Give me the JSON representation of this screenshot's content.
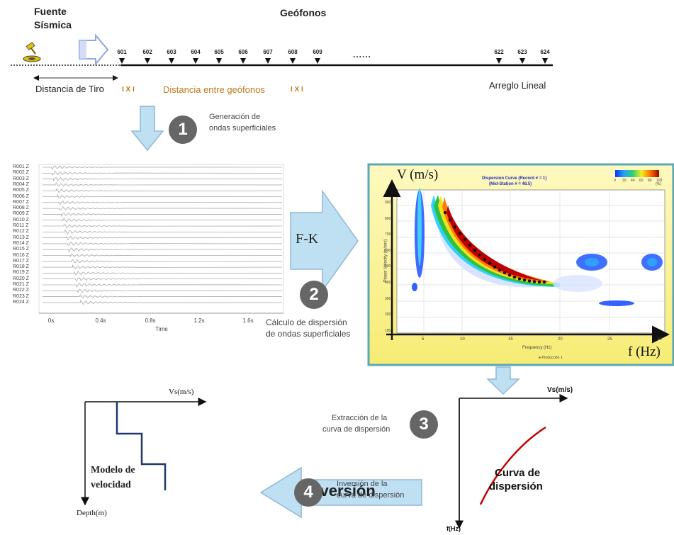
{
  "top": {
    "source_label_1": "Fuente",
    "source_label_2": "Sísmica",
    "geophones_title": "Geófonos",
    "geophones": [
      "601",
      "602",
      "603",
      "604",
      "605",
      "606",
      "607",
      "608",
      "609",
      "622",
      "623",
      "624"
    ],
    "ellipsis": "......",
    "shot_distance": "Distancia de Tiro",
    "geophone_spacing": "Distancia entre geófonos",
    "linear_array": "Arreglo Lineal",
    "spacing_marks": "I X I"
  },
  "steps": [
    {
      "number": "1",
      "line1": "Generación de",
      "line2": "ondas superficiales"
    },
    {
      "number": "2",
      "line1": "Cálculo de dispersión",
      "line2": "de ondas superficiales"
    },
    {
      "number": "3",
      "line1": "Extracción de la",
      "line2": "curva de dispersión"
    },
    {
      "number": "4",
      "line1": "Inversión  de la",
      "line2": "curva de dispersión"
    }
  ],
  "seismogram": {
    "traces": [
      "R001 Z",
      "R002 Z",
      "R003 Z",
      "R004 Z",
      "R005 Z",
      "R006 Z",
      "R007 Z",
      "R008 Z",
      "R009 Z",
      "R010 Z",
      "R011 Z",
      "R012 Z",
      "R013 Z",
      "R014 Z",
      "R015 Z",
      "R016 Z",
      "R017 Z",
      "R018 Z",
      "R019 Z",
      "R020 Z",
      "R021 Z",
      "R022 Z",
      "R023 Z",
      "R024 Z"
    ],
    "time_ticks": [
      "0s",
      "0.4s",
      "0.8s",
      "1.2s",
      "1.6s"
    ],
    "time_label": "Time"
  },
  "fk_label": "F-K",
  "dispersion_image": {
    "y_axis": "V (m/s)",
    "x_axis": "f (Hz)",
    "title_line1": "Dispersion Curve (Record # = 1)",
    "title_line2": "(Mid-Station # = 48.5)",
    "y_ticks": [
      "900",
      "800",
      "700",
      "600",
      "500",
      "400",
      "300",
      "200",
      "100"
    ],
    "x_ticks": [
      "5",
      "10",
      "15",
      "20",
      "25",
      "30"
    ],
    "inner_xlabel": "Frequency (Hz)",
    "inner_ylabel": "Phase Velocity (m/sec)",
    "colorbar_ticks": [
      "0",
      "20",
      "40",
      "60",
      "80",
      "100"
    ],
    "colorbar_unit": "(%)",
    "legend": "Producción 1"
  },
  "inversion_label": "Inversión",
  "dispersion_curve_plot": {
    "y_axis": "Vs(m/s)",
    "x_axis": "f(Hz)",
    "curve_label_1": "Curva de",
    "curve_label_2": "dispersión"
  },
  "velocity_model": {
    "top_axis": "Vs(m/s)",
    "bottom_axis": "Depth(m)",
    "label_1": "Modelo de",
    "label_2": "velocidad"
  },
  "colors": {
    "arrow_fill": "#bfe0f2",
    "arrow_stroke": "#8fb8d4",
    "step_circle": "#666666",
    "dispersion_bg": "#fbf6a0",
    "dispersion_frame": "#5aa7b8",
    "curve_red": "#c00000",
    "model_blue": "#1f3a6a",
    "orange_text": "#c07818"
  }
}
